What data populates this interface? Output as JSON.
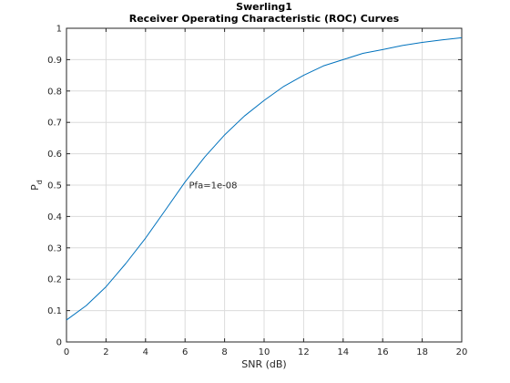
{
  "chart_data": {
    "type": "line",
    "title": "Swerling1",
    "subtitle": "Receiver Operating Characteristic (ROC) Curves",
    "xlabel": "SNR (dB)",
    "ylabel_main": "P",
    "ylabel_sub": "d",
    "xlim": [
      0,
      20
    ],
    "ylim": [
      0,
      1
    ],
    "xticks": [
      0,
      2,
      4,
      6,
      8,
      10,
      12,
      14,
      16,
      18,
      20
    ],
    "yticks": [
      0,
      0.1,
      0.2,
      0.3,
      0.4,
      0.5,
      0.6,
      0.7,
      0.8,
      0.9,
      1
    ],
    "xtick_labels": [
      "0",
      "2",
      "4",
      "6",
      "8",
      "10",
      "12",
      "14",
      "16",
      "18",
      "20"
    ],
    "ytick_labels": [
      "0",
      "0.1",
      "0.2",
      "0.3",
      "0.4",
      "0.5",
      "0.6",
      "0.7",
      "0.8",
      "0.9",
      "1"
    ],
    "grid": true,
    "series": [
      {
        "color": "#0072bd",
        "x": [
          0,
          1,
          2,
          3,
          4,
          5,
          6,
          7,
          8,
          9,
          10,
          11,
          12,
          13,
          14,
          15,
          16,
          17,
          18,
          19,
          20
        ],
        "y": [
          0.07,
          0.116,
          0.176,
          0.25,
          0.331,
          0.42,
          0.51,
          0.59,
          0.66,
          0.72,
          0.77,
          0.815,
          0.85,
          0.88,
          0.9,
          0.92,
          0.932,
          0.945,
          0.955,
          0.963,
          0.97
        ]
      }
    ],
    "annotations": [
      {
        "text": "Pfa=1e-08",
        "x": 6.2,
        "y": 0.5
      }
    ]
  }
}
